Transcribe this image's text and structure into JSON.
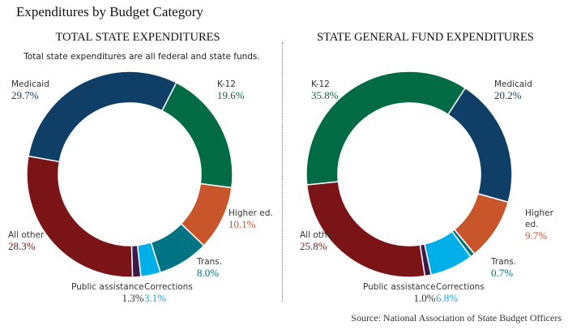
{
  "title": "Expenditures by Budget Category",
  "source": "Source: National Association of State Budget Officers",
  "chart_data": [
    {
      "type": "pie",
      "title": "TOTAL STATE EXPENDITURES",
      "note": "Total state expenditures are all federal and state funds.",
      "categories": [
        "K-12",
        "Higher ed.",
        "Trans.",
        "Corrections",
        "Public assistance",
        "All other",
        "Medicaid"
      ],
      "values": [
        19.6,
        10.1,
        8.0,
        3.1,
        1.3,
        28.3,
        29.7
      ],
      "labels": [
        "19.6%",
        "10.1%",
        "8.0%",
        "3.1%",
        "1.3%",
        "28.3%",
        "29.7%"
      ],
      "colors": [
        "#006b45",
        "#c9552b",
        "#007483",
        "#00aee8",
        "#3c1a4a",
        "#7b1416",
        "#0f3f66"
      ],
      "label_colors": [
        "#006b45",
        "#c9552b",
        "#007483",
        "#00aee8",
        "#333333",
        "#7b1416",
        "#0f3f66"
      ]
    },
    {
      "type": "pie",
      "title": "STATE GENERAL FUND EXPENDITURES",
      "categories": [
        "Medicaid",
        "Higher ed.",
        "Trans.",
        "Corrections",
        "Public assistance",
        "All other",
        "K-12"
      ],
      "values": [
        20.2,
        9.7,
        0.7,
        6.8,
        1.0,
        25.8,
        35.8
      ],
      "labels": [
        "20.2%",
        "9.7%",
        "0.7%",
        "6.8%",
        "1.0%",
        "25.8%",
        "35.8%"
      ],
      "colors": [
        "#0f3f66",
        "#c9552b",
        "#007483",
        "#00aee8",
        "#3c1a4a",
        "#7b1416",
        "#006b45"
      ],
      "label_colors": [
        "#0f3f66",
        "#c9552b",
        "#007483",
        "#00aee8",
        "#333333",
        "#7b1416",
        "#006b45"
      ]
    }
  ]
}
